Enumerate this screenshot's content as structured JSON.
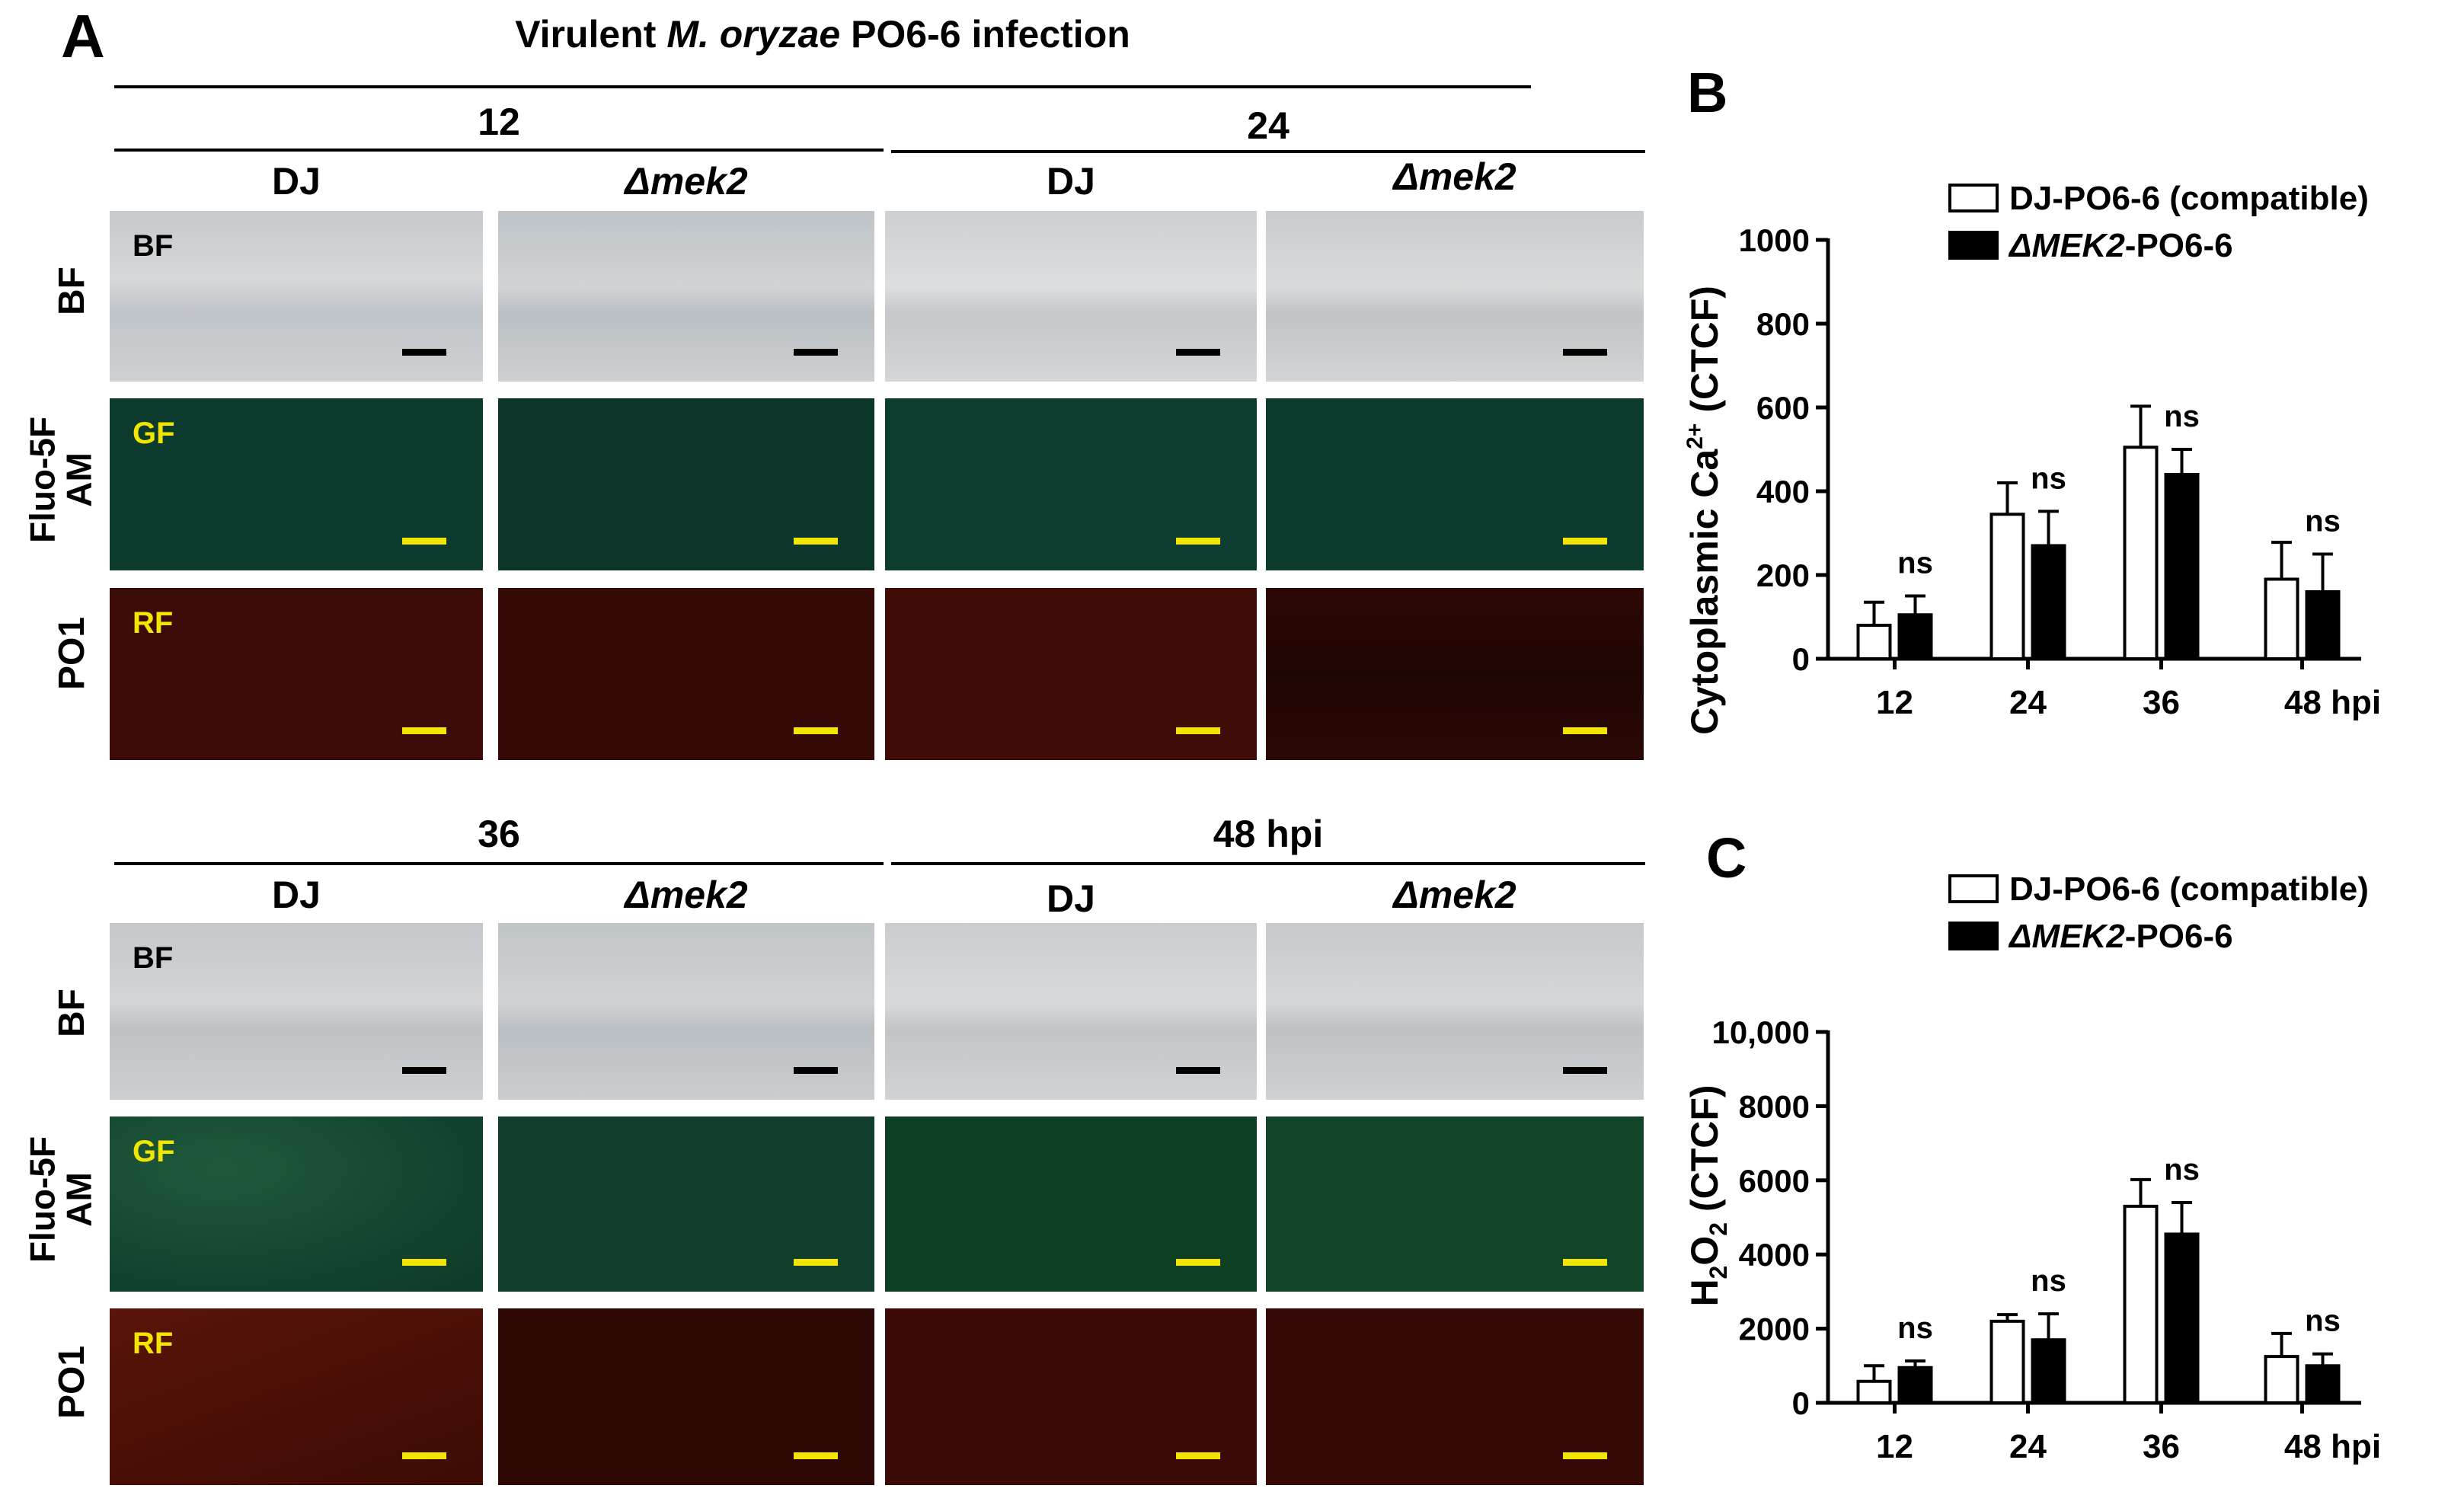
{
  "figure": {
    "panel_a": {
      "letter": "A",
      "title_prefix": "Virulent ",
      "title_italic": "M. oryzae",
      "title_suffix": " PO6-6 infection",
      "time_headers": [
        "12",
        "24",
        "36",
        "48 hpi"
      ],
      "column_dj": "DJ",
      "column_mutant": "Δmek2",
      "row_labels": {
        "bf": "BF",
        "fluo_line1": "Fluo-5F",
        "fluo_line2": "AM",
        "po1": "PO1"
      },
      "tile_labels": {
        "bf": "BF",
        "gf": "GF",
        "rf": "RF"
      }
    },
    "panel_b": {
      "letter": "B"
    },
    "panel_c": {
      "letter": "C"
    }
  },
  "colors": {
    "scale_bar_bf": "#000000",
    "scale_bar_fluor": "#f2e600",
    "label_fluor": "#f2e600",
    "bar_open": "#ffffff",
    "bar_filled": "#000000"
  },
  "chart_data": [
    {
      "type": "bar",
      "panel": "B",
      "ylabel_main": "Cytoplasmic Ca",
      "ylabel_sup": "2+",
      "ylabel_tail": " (CTCF)",
      "categories": [
        "12",
        "24",
        "36",
        "48 hpi"
      ],
      "ylim": [
        0,
        1000
      ],
      "yticks": [
        "0",
        "200",
        "400",
        "600",
        "800",
        "1000"
      ],
      "yticks_values": [
        0,
        200,
        400,
        600,
        800,
        1000
      ],
      "legend": {
        "position": "top-right"
      },
      "series": [
        {
          "name": "DJ-PO6-6 (compatible)",
          "name_italic": "",
          "name_rest": "DJ-PO6-6 (compatible)",
          "fill": "open",
          "values": [
            80,
            345,
            505,
            190
          ],
          "errors": [
            55,
            75,
            98,
            88
          ]
        },
        {
          "name": "ΔMEK2-PO6-6",
          "name_italic": "ΔMEK2",
          "name_rest": "-PO6-6",
          "fill": "filled",
          "values": [
            105,
            270,
            440,
            160
          ],
          "errors": [
            45,
            82,
            60,
            90
          ]
        }
      ],
      "annotations": [
        "ns",
        "ns",
        "ns",
        "ns"
      ]
    },
    {
      "type": "bar",
      "panel": "C",
      "ylabel_main": "H",
      "ylabel_sub": "2",
      "ylabel_mid": "O",
      "ylabel_sub2": "2",
      "ylabel_tail": " (CTCF)",
      "categories": [
        "12",
        "24",
        "36",
        "48 hpi"
      ],
      "ylim": [
        0,
        10000
      ],
      "yticks": [
        "0",
        "2000",
        "4000",
        "6000",
        "8000",
        "10,000"
      ],
      "yticks_values": [
        0,
        2000,
        4000,
        6000,
        8000,
        10000
      ],
      "legend": {
        "position": "top-right"
      },
      "series": [
        {
          "name": "DJ-PO6-6 (compatible)",
          "name_italic": "",
          "name_rest": "DJ-PO6-6 (compatible)",
          "fill": "open",
          "values": [
            580,
            2200,
            5300,
            1250
          ],
          "errors": [
            420,
            180,
            720,
            620
          ]
        },
        {
          "name": "ΔMEK2-PO6-6",
          "name_italic": "ΔMEK2",
          "name_rest": "-PO6-6",
          "fill": "filled",
          "values": [
            950,
            1700,
            4550,
            1000
          ],
          "errors": [
            180,
            700,
            850,
            320
          ]
        }
      ],
      "annotations": [
        "ns",
        "ns",
        "ns",
        "ns"
      ]
    }
  ]
}
